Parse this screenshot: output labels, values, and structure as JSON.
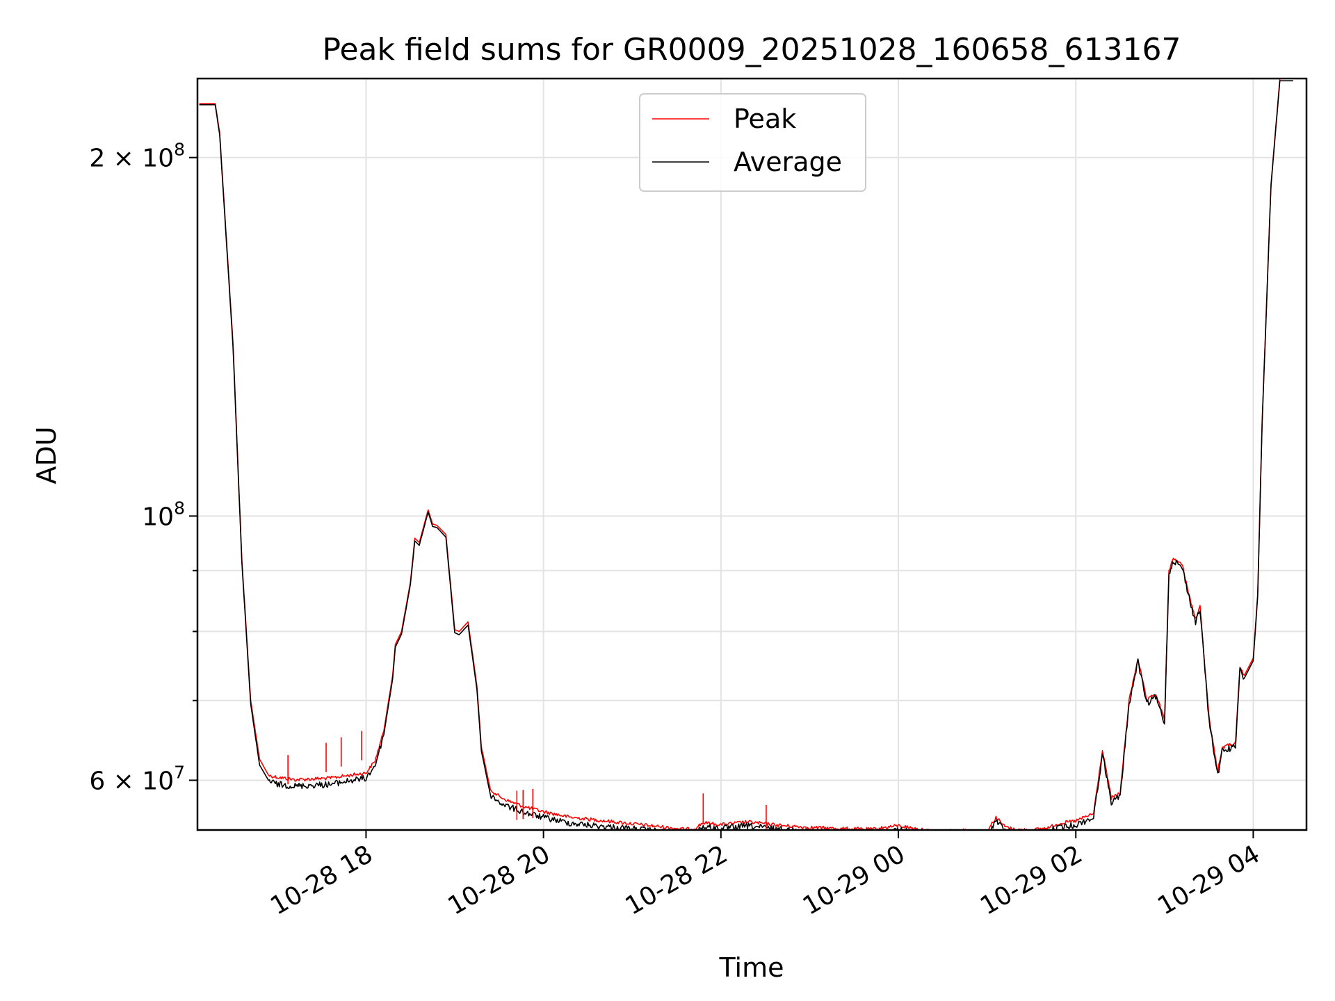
{
  "chart_data": {
    "type": "line",
    "title": "Peak field sums for GR0009_20251028_160658_613167",
    "xlabel": "Time",
    "ylabel": "ADU",
    "yscale": "log",
    "xlim": [
      16.1,
      28.6
    ],
    "ylim": [
      54500000,
      233000000
    ],
    "grid": true,
    "legend_position": "upper-center",
    "x_ticks": [
      {
        "value": 18,
        "label": "10-28 18"
      },
      {
        "value": 20,
        "label": "10-28 20"
      },
      {
        "value": 22,
        "label": "10-28 22"
      },
      {
        "value": 24,
        "label": "10-29 00"
      },
      {
        "value": 26,
        "label": "10-29 02"
      },
      {
        "value": 28,
        "label": "10-29 04"
      }
    ],
    "y_major_ticks": [
      {
        "value": 60000000,
        "label_base": "6 × 10",
        "label_exp": "7"
      },
      {
        "value": 100000000,
        "label_base": "10",
        "label_exp": "8"
      },
      {
        "value": 200000000,
        "label_base": "2 × 10",
        "label_exp": "8"
      }
    ],
    "y_minor_ticks": [
      70000000,
      80000000,
      90000000
    ],
    "x_units": "hours since 10-28 00:00",
    "series": [
      {
        "name": "Peak",
        "color": "#ff0000",
        "x": [
          16.12,
          16.3,
          16.35,
          16.5,
          16.6,
          16.7,
          16.8,
          16.9,
          17.0,
          17.2,
          17.4,
          17.6,
          17.8,
          18.0,
          18.1,
          18.2,
          18.3,
          18.33,
          18.4,
          18.5,
          18.55,
          18.6,
          18.7,
          18.75,
          18.8,
          18.9,
          19.0,
          19.05,
          19.15,
          19.25,
          19.3,
          19.4,
          19.5,
          19.6,
          19.8,
          20.0,
          20.3,
          20.6,
          21.0,
          21.3,
          21.6,
          21.7,
          21.8,
          22.0,
          22.3,
          22.7,
          23.0,
          23.3,
          23.7,
          24.0,
          24.3,
          24.5,
          24.8,
          25.0,
          25.1,
          25.2,
          25.3,
          25.5,
          25.7,
          25.8,
          26.0,
          26.2,
          26.3,
          26.4,
          26.5,
          26.6,
          26.7,
          26.8,
          26.9,
          27.0,
          27.05,
          27.1,
          27.2,
          27.3,
          27.35,
          27.4,
          27.5,
          27.6,
          27.65,
          27.8,
          27.85,
          27.9,
          28.0,
          28.05,
          28.1,
          28.2,
          28.3,
          28.35,
          28.45
        ],
        "y": [
          222000000,
          222000000,
          210000000,
          140000000,
          92000000,
          70000000,
          62500000,
          60600000,
          60400000,
          60100000,
          60200000,
          60300000,
          60600000,
          60900000,
          62300000,
          66000000,
          73500000,
          78000000,
          80000000,
          88000000,
          95800000,
          95000000,
          101200000,
          98500000,
          98200000,
          96500000,
          80300000,
          80000000,
          81500000,
          72000000,
          64000000,
          59000000,
          58200000,
          57700000,
          57000000,
          56500000,
          55900000,
          55600000,
          55200000,
          54900000,
          54600000,
          54700000,
          55300000,
          55100000,
          55400000,
          55000000,
          54800000,
          54700000,
          54600000,
          55000000,
          54500000,
          54400000,
          54500000,
          54400000,
          55900000,
          54900000,
          54600000,
          54500000,
          54800000,
          55200000,
          55500000,
          56300000,
          63600000,
          58000000,
          58600000,
          70000000,
          76000000,
          70000000,
          71000000,
          67500000,
          90000000,
          92300000,
          91000000,
          84500000,
          82000000,
          84000000,
          68000000,
          61000000,
          64000000,
          64500000,
          74700000,
          73500000,
          76000000,
          86000000,
          120000000,
          190000000,
          233000000,
          233000000,
          233000000
        ]
      },
      {
        "name": "Average",
        "color": "#000000",
        "x": [
          16.12,
          16.3,
          16.35,
          16.5,
          16.6,
          16.7,
          16.8,
          16.9,
          17.0,
          17.2,
          17.4,
          17.6,
          17.8,
          18.0,
          18.1,
          18.2,
          18.3,
          18.33,
          18.4,
          18.5,
          18.55,
          18.6,
          18.7,
          18.75,
          18.8,
          18.9,
          19.0,
          19.05,
          19.15,
          19.25,
          19.3,
          19.4,
          19.5,
          19.6,
          19.8,
          20.0,
          20.3,
          20.6,
          21.0,
          21.3,
          21.6,
          21.7,
          21.8,
          22.0,
          22.3,
          22.7,
          23.0,
          23.3,
          23.7,
          24.0,
          24.3,
          24.5,
          24.8,
          25.0,
          25.1,
          25.2,
          25.3,
          25.5,
          25.7,
          25.8,
          26.0,
          26.2,
          26.3,
          26.4,
          26.5,
          26.6,
          26.7,
          26.8,
          26.9,
          27.0,
          27.05,
          27.1,
          27.2,
          27.3,
          27.35,
          27.4,
          27.5,
          27.6,
          27.65,
          27.8,
          27.85,
          27.9,
          28.0,
          28.05,
          28.1,
          28.2,
          28.3,
          28.35,
          28.45
        ],
        "y": [
          221500000,
          221500000,
          209000000,
          139000000,
          91500000,
          69500000,
          61800000,
          60000000,
          59600000,
          59400000,
          59500000,
          59600000,
          60000000,
          60300000,
          61800000,
          65500000,
          73000000,
          77600000,
          79600000,
          87600000,
          95300000,
          94500000,
          100800000,
          98000000,
          97800000,
          96000000,
          79800000,
          79500000,
          81000000,
          71500000,
          63500000,
          58400000,
          57600000,
          57100000,
          56400000,
          55900000,
          55300000,
          55000000,
          54700000,
          54400000,
          54100000,
          54300000,
          54900000,
          54700000,
          55000000,
          54600000,
          54400000,
          54300000,
          54200000,
          54600000,
          54100000,
          54000000,
          54100000,
          54000000,
          55600000,
          54500000,
          54200000,
          54100000,
          54400000,
          54800000,
          55100000,
          55900000,
          63200000,
          57600000,
          58200000,
          69600000,
          75600000,
          69600000,
          70600000,
          67100000,
          89600000,
          91900000,
          90600000,
          84100000,
          81600000,
          83600000,
          67600000,
          60600000,
          63600000,
          64100000,
          74300000,
          73100000,
          75600000,
          85600000,
          119500000,
          189500000,
          232000000,
          232000000,
          232000000
        ]
      }
    ]
  }
}
